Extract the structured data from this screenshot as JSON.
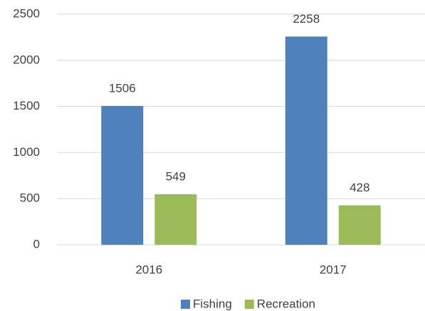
{
  "chart_data": {
    "type": "bar",
    "categories": [
      "2016",
      "2017"
    ],
    "series": [
      {
        "name": "Fishing",
        "color": "#4f81bd",
        "values": [
          1506,
          2258
        ]
      },
      {
        "name": "Recreation",
        "color": "#9bbb59",
        "values": [
          549,
          428
        ]
      }
    ],
    "ylim": [
      0,
      2500
    ],
    "yticks": [
      0,
      500,
      1000,
      1500,
      2000,
      2500
    ],
    "grid": true,
    "legend": "bottom"
  }
}
